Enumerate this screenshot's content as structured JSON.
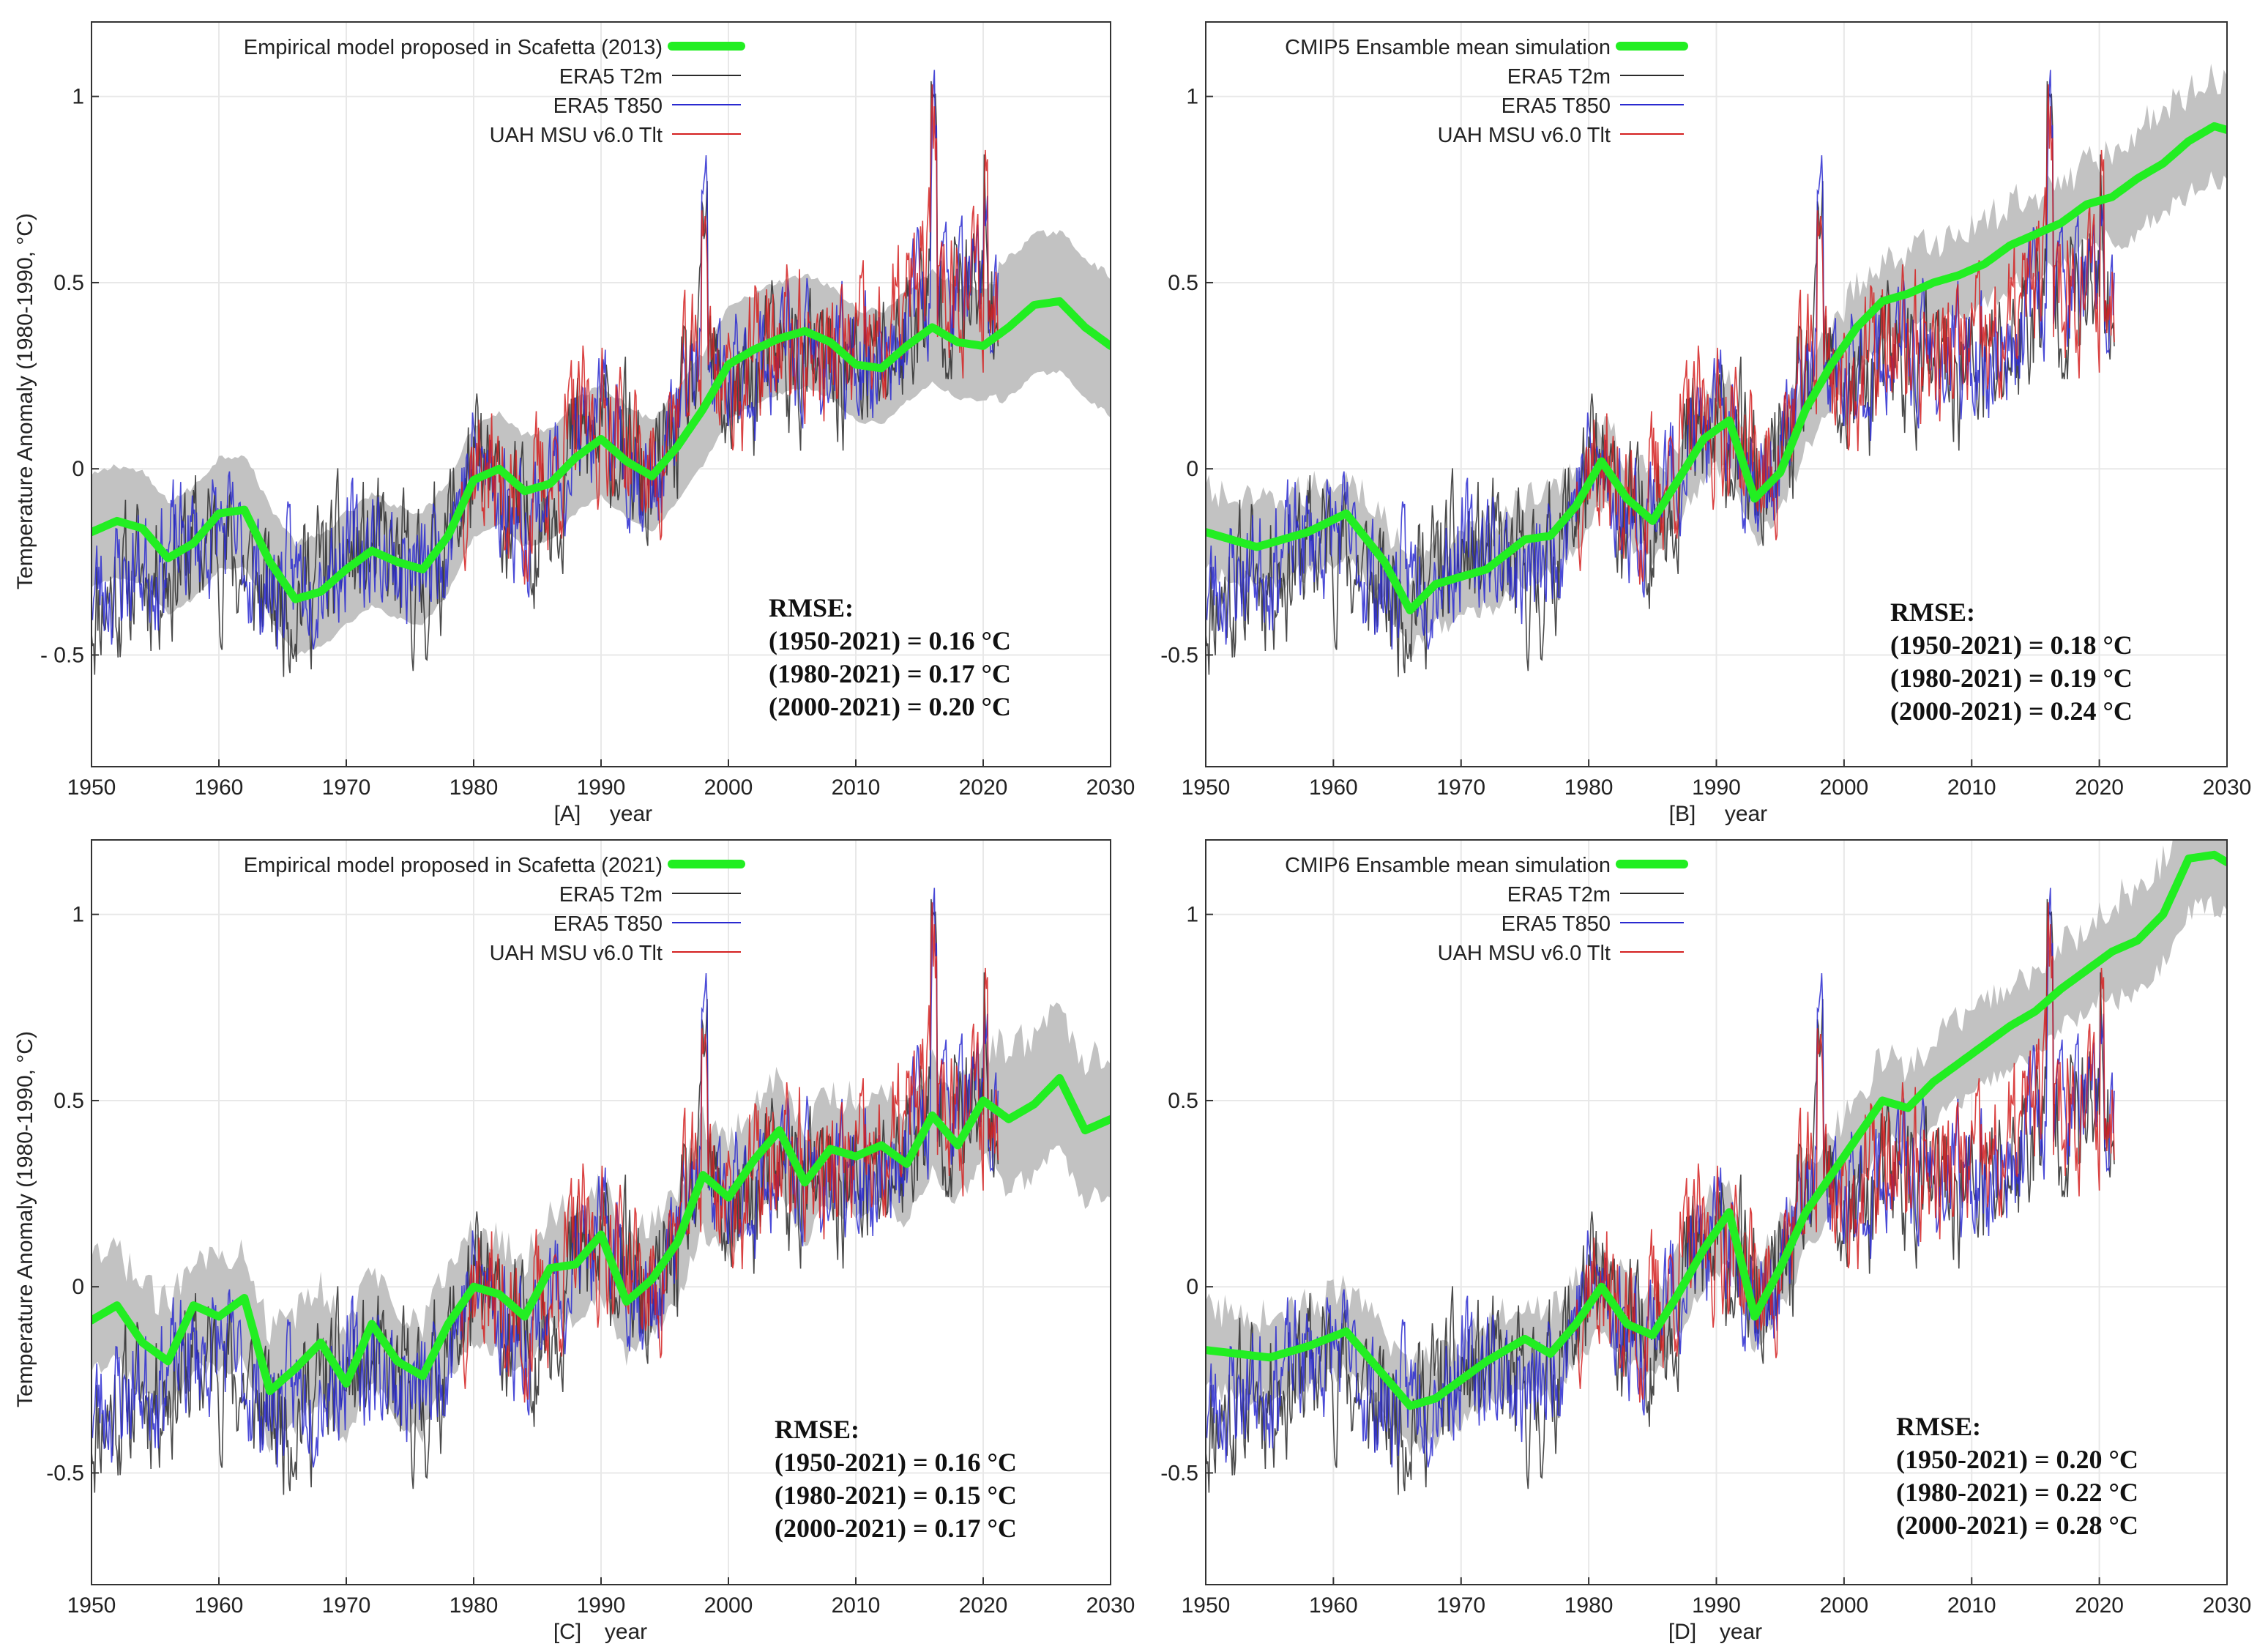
{
  "y_axis_title": "Temperature Anomaly (1980-1990, °C)",
  "x_axis_name": "year",
  "legend_common": [
    "ERA5 T2m",
    "ERA5 T850",
    "UAH MSU v6.0 Tlt"
  ],
  "colors": {
    "model": "#22ee22",
    "band": "#c2c2c2",
    "t2m": "#2b2b2b",
    "t850": "#2a2ad0",
    "uah": "#d42020",
    "grid": "#e8e8e8",
    "axis": "#333333"
  },
  "chart_data": [
    {
      "type": "line",
      "panel": "[A]",
      "title": "",
      "xlabel": "year",
      "ylabel": "Temperature Anomaly (1980-1990, °C)",
      "xlim": [
        1950,
        2030
      ],
      "ylim": [
        -0.8,
        1.2
      ],
      "xticks": [
        1950,
        1960,
        1970,
        1980,
        1990,
        2000,
        2010,
        2020,
        2030
      ],
      "yticks": [
        -0.5,
        0,
        0.5,
        1
      ],
      "ytick_labels": [
        "- 0.5",
        "0",
        "0.5",
        "1"
      ],
      "legend_position": "top-left",
      "model_name": "Empirical model proposed in Scafetta (2013)",
      "model_x": [
        1950,
        1952,
        1954,
        1956,
        1958,
        1960,
        1962,
        1964,
        1966,
        1968,
        1970,
        1972,
        1974,
        1976,
        1978,
        1980,
        1982,
        1984,
        1986,
        1988,
        1990,
        1992,
        1994,
        1996,
        1998,
        2000,
        2002,
        2004,
        2006,
        2008,
        2010,
        2012,
        2014,
        2016,
        2018,
        2020,
        2022,
        2024,
        2026,
        2028,
        2030
      ],
      "model_y": [
        -0.17,
        -0.14,
        -0.16,
        -0.24,
        -0.2,
        -0.12,
        -0.11,
        -0.25,
        -0.35,
        -0.33,
        -0.27,
        -0.22,
        -0.25,
        -0.27,
        -0.18,
        -0.03,
        0.0,
        -0.06,
        -0.04,
        0.03,
        0.08,
        0.02,
        -0.02,
        0.06,
        0.16,
        0.28,
        0.32,
        0.35,
        0.37,
        0.34,
        0.28,
        0.27,
        0.33,
        0.38,
        0.34,
        0.33,
        0.38,
        0.44,
        0.45,
        0.38,
        0.33
      ],
      "band_halfwidth": 0.15,
      "rmse_title": "RMSE:",
      "rmse_lines": [
        "(1950-2021) = 0.16 °C",
        "(1980-2021) = 0.17 °C",
        "(2000-2021) = 0.20 °C"
      ]
    },
    {
      "type": "line",
      "panel": "[B]",
      "title": "",
      "xlabel": "year",
      "ylabel": "",
      "xlim": [
        1950,
        2030
      ],
      "ylim": [
        -0.8,
        1.2
      ],
      "xticks": [
        1950,
        1960,
        1970,
        1980,
        1990,
        2000,
        2010,
        2020,
        2030
      ],
      "yticks": [
        -0.5,
        0,
        0.5,
        1
      ],
      "ytick_labels": [
        "-0.5",
        "0",
        "0.5",
        "1"
      ],
      "legend_position": "top-left",
      "model_name": "CMIP5 Ensamble mean simulation",
      "model_x": [
        1950,
        1954,
        1958,
        1961,
        1964,
        1966,
        1968,
        1972,
        1975,
        1977,
        1979,
        1981,
        1983,
        1985,
        1987,
        1989,
        1991,
        1993,
        1995,
        1997,
        1999,
        2001,
        2003,
        2005,
        2007,
        2009,
        2011,
        2013,
        2015,
        2017,
        2019,
        2021,
        2023,
        2025,
        2027,
        2029,
        2030
      ],
      "model_y": [
        -0.17,
        -0.21,
        -0.17,
        -0.12,
        -0.25,
        -0.38,
        -0.31,
        -0.27,
        -0.19,
        -0.18,
        -0.1,
        0.02,
        -0.08,
        -0.14,
        -0.03,
        0.08,
        0.13,
        -0.08,
        -0.01,
        0.16,
        0.28,
        0.38,
        0.45,
        0.47,
        0.5,
        0.52,
        0.55,
        0.6,
        0.63,
        0.66,
        0.71,
        0.73,
        0.78,
        0.82,
        0.88,
        0.92,
        0.91
      ],
      "band_halfwidth": 0.11,
      "rmse_title": "RMSE:",
      "rmse_lines": [
        "(1950-2021) = 0.18 °C",
        "(1980-2021) = 0.19 °C",
        "(2000-2021) = 0.24 °C"
      ]
    },
    {
      "type": "line",
      "panel": "[C]",
      "title": "",
      "xlabel": "year",
      "ylabel": "Temperature Anomaly (1980-1990, °C)",
      "xlim": [
        1950,
        2030
      ],
      "ylim": [
        -0.8,
        1.2
      ],
      "xticks": [
        1950,
        1960,
        1970,
        1980,
        1990,
        2000,
        2010,
        2020,
        2030
      ],
      "yticks": [
        -0.5,
        0,
        0.5,
        1
      ],
      "ytick_labels": [
        "-0.5",
        "0",
        "0.5",
        "1"
      ],
      "legend_position": "top-left",
      "model_name": "Empirical model proposed in Scafetta (2021)",
      "model_x": [
        1950,
        1952,
        1954,
        1956,
        1958,
        1960,
        1962,
        1964,
        1966,
        1968,
        1970,
        1972,
        1974,
        1976,
        1978,
        1980,
        1982,
        1984,
        1986,
        1988,
        1990,
        1992,
        1994,
        1996,
        1998,
        2000,
        2002,
        2004,
        2006,
        2008,
        2010,
        2012,
        2014,
        2016,
        2018,
        2020,
        2022,
        2024,
        2026,
        2028,
        2030
      ],
      "model_y": [
        -0.09,
        -0.05,
        -0.15,
        -0.2,
        -0.05,
        -0.08,
        -0.03,
        -0.28,
        -0.22,
        -0.15,
        -0.26,
        -0.1,
        -0.2,
        -0.24,
        -0.1,
        0.0,
        -0.02,
        -0.08,
        0.05,
        0.06,
        0.14,
        -0.04,
        0.02,
        0.12,
        0.3,
        0.24,
        0.34,
        0.42,
        0.28,
        0.37,
        0.35,
        0.38,
        0.33,
        0.46,
        0.38,
        0.5,
        0.45,
        0.49,
        0.56,
        0.42,
        0.45
      ],
      "band_halfwidth": 0.15,
      "rmse_title": "RMSE:",
      "rmse_lines": [
        "(1950-2021) = 0.16 °C",
        "(1980-2021) = 0.15 °C",
        "(2000-2021) = 0.17 °C"
      ]
    },
    {
      "type": "line",
      "panel": "[D]",
      "title": "",
      "xlabel": "year",
      "ylabel": "",
      "xlim": [
        1950,
        2030
      ],
      "ylim": [
        -0.8,
        1.2
      ],
      "xticks": [
        1950,
        1960,
        1970,
        1980,
        1990,
        2000,
        2010,
        2020,
        2030
      ],
      "yticks": [
        -0.5,
        0,
        0.5,
        1
      ],
      "ytick_labels": [
        "-0.5",
        "0",
        "0.5",
        "1"
      ],
      "legend_position": "top-left",
      "model_name": "CMIP6 Ensamble mean simulation",
      "model_x": [
        1950,
        1955,
        1958,
        1961,
        1964,
        1966,
        1968,
        1972,
        1975,
        1977,
        1979,
        1981,
        1983,
        1985,
        1987,
        1989,
        1991,
        1993,
        1995,
        1997,
        1999,
        2001,
        2003,
        2005,
        2007,
        2009,
        2011,
        2013,
        2015,
        2017,
        2019,
        2021,
        2023,
        2025,
        2027,
        2029,
        2030
      ],
      "model_y": [
        -0.17,
        -0.19,
        -0.16,
        -0.12,
        -0.24,
        -0.32,
        -0.3,
        -0.2,
        -0.14,
        -0.18,
        -0.1,
        0.0,
        -0.1,
        -0.13,
        -0.02,
        0.1,
        0.2,
        -0.08,
        0.05,
        0.2,
        0.3,
        0.4,
        0.5,
        0.48,
        0.55,
        0.6,
        0.65,
        0.7,
        0.74,
        0.8,
        0.85,
        0.9,
        0.93,
        1.0,
        1.15,
        1.16,
        1.14
      ],
      "band_halfwidth": 0.11,
      "rmse_title": "RMSE:",
      "rmse_lines": [
        "(1950-2021) = 0.20 °C",
        "(1980-2021) = 0.22 °C",
        "(2000-2021) = 0.28 °C"
      ]
    }
  ]
}
